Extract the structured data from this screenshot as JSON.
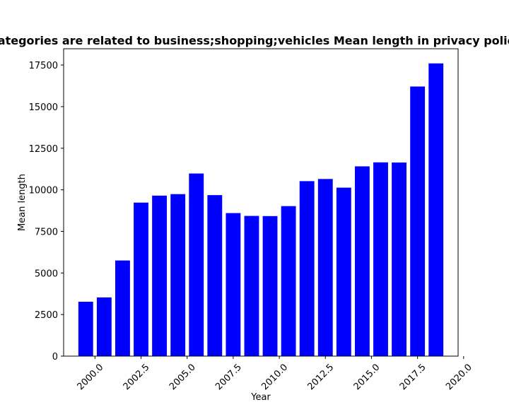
{
  "chart_data": {
    "type": "bar",
    "title": "Categories are related to business;shopping;vehicles Mean length in privacy policies",
    "xlabel": "Year",
    "ylabel": "Mean length",
    "bar_color": "#0000ff",
    "x": [
      1999.5,
      2000.5,
      2001.5,
      2002.5,
      2003.5,
      2004.5,
      2005.5,
      2006.5,
      2007.5,
      2008.5,
      2009.5,
      2010.5,
      2011.5,
      2012.5,
      2013.5,
      2014.5,
      2015.5,
      2016.5,
      2017.5,
      2018.5
    ],
    "values": [
      3270,
      3530,
      5750,
      9230,
      9650,
      9740,
      10980,
      9680,
      8600,
      8430,
      8420,
      9020,
      10520,
      10650,
      10130,
      11410,
      11650,
      11640,
      16210,
      17600
    ],
    "bar_width": 0.8,
    "xlim": [
      1998.3,
      2019.7
    ],
    "ylim": [
      0,
      18480
    ],
    "xticks": [
      2000.0,
      2002.5,
      2005.0,
      2007.5,
      2010.0,
      2012.5,
      2015.0,
      2017.5,
      2020.0
    ],
    "xtick_labels": [
      "2000.0",
      "2002.5",
      "2005.0",
      "2007.5",
      "2010.0",
      "2012.5",
      "2015.0",
      "2017.5",
      "2020.0"
    ],
    "yticks": [
      0,
      2500,
      5000,
      7500,
      10000,
      12500,
      15000,
      17500
    ],
    "ytick_labels": [
      "0",
      "2500",
      "5000",
      "7500",
      "10000",
      "12500",
      "15000",
      "17500"
    ],
    "xtick_rotation": 45,
    "grid": false,
    "legend": "none"
  }
}
